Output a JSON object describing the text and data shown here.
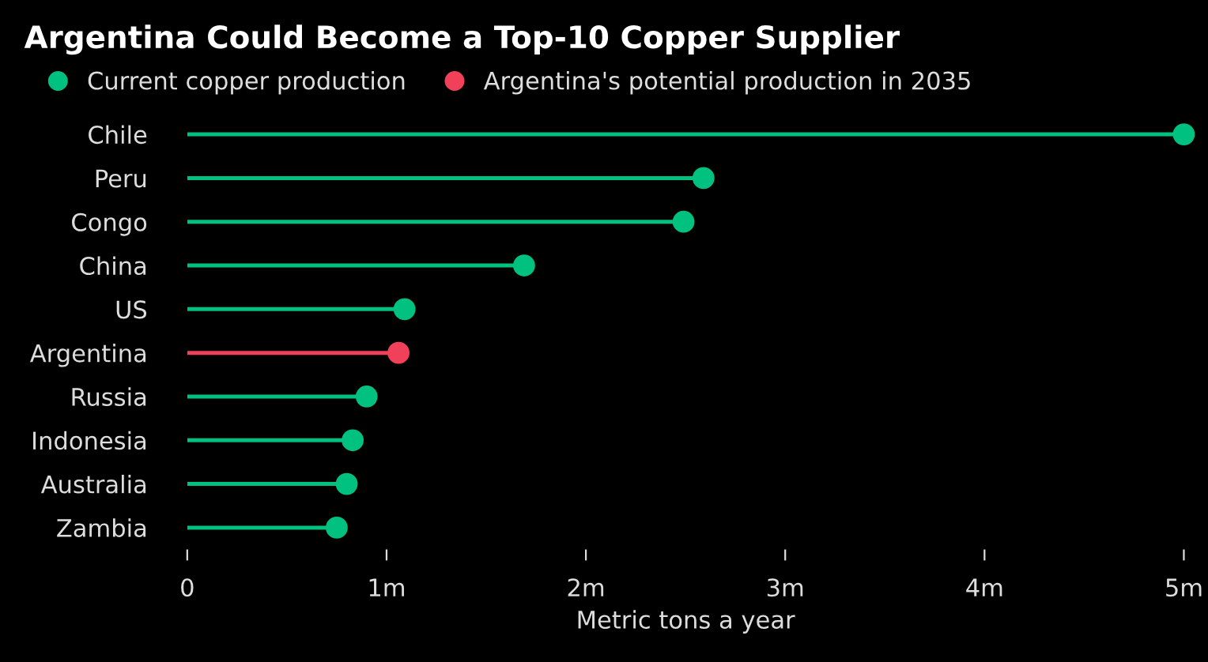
{
  "chart_data": {
    "type": "lollipop",
    "title": "Argentina Could Become a Top-10 Copper Supplier",
    "xlabel": "Metric tons a year",
    "orientation": "horizontal",
    "categories": [
      "Chile",
      "Peru",
      "Congo",
      "China",
      "US",
      "Argentina",
      "Russia",
      "Indonesia",
      "Australia",
      "Zambia"
    ],
    "series": [
      {
        "name": "Current copper production",
        "color": "#00c180",
        "values": [
          5.0,
          2.59,
          2.49,
          1.69,
          1.09,
          null,
          0.9,
          0.83,
          0.8,
          0.75
        ]
      },
      {
        "name": "Argentina's potential production in 2035",
        "color": "#f0405a",
        "values": [
          null,
          null,
          null,
          null,
          null,
          1.06,
          null,
          null,
          null,
          null
        ]
      }
    ],
    "xlim": [
      0,
      5
    ],
    "xticks": [
      {
        "value": 0,
        "label": "0"
      },
      {
        "value": 1,
        "label": "1m"
      },
      {
        "value": 2,
        "label": "2m"
      },
      {
        "value": 3,
        "label": "3m"
      },
      {
        "value": 4,
        "label": "4m"
      },
      {
        "value": 5,
        "label": "5m"
      }
    ],
    "legend": "top left",
    "grid": false
  }
}
